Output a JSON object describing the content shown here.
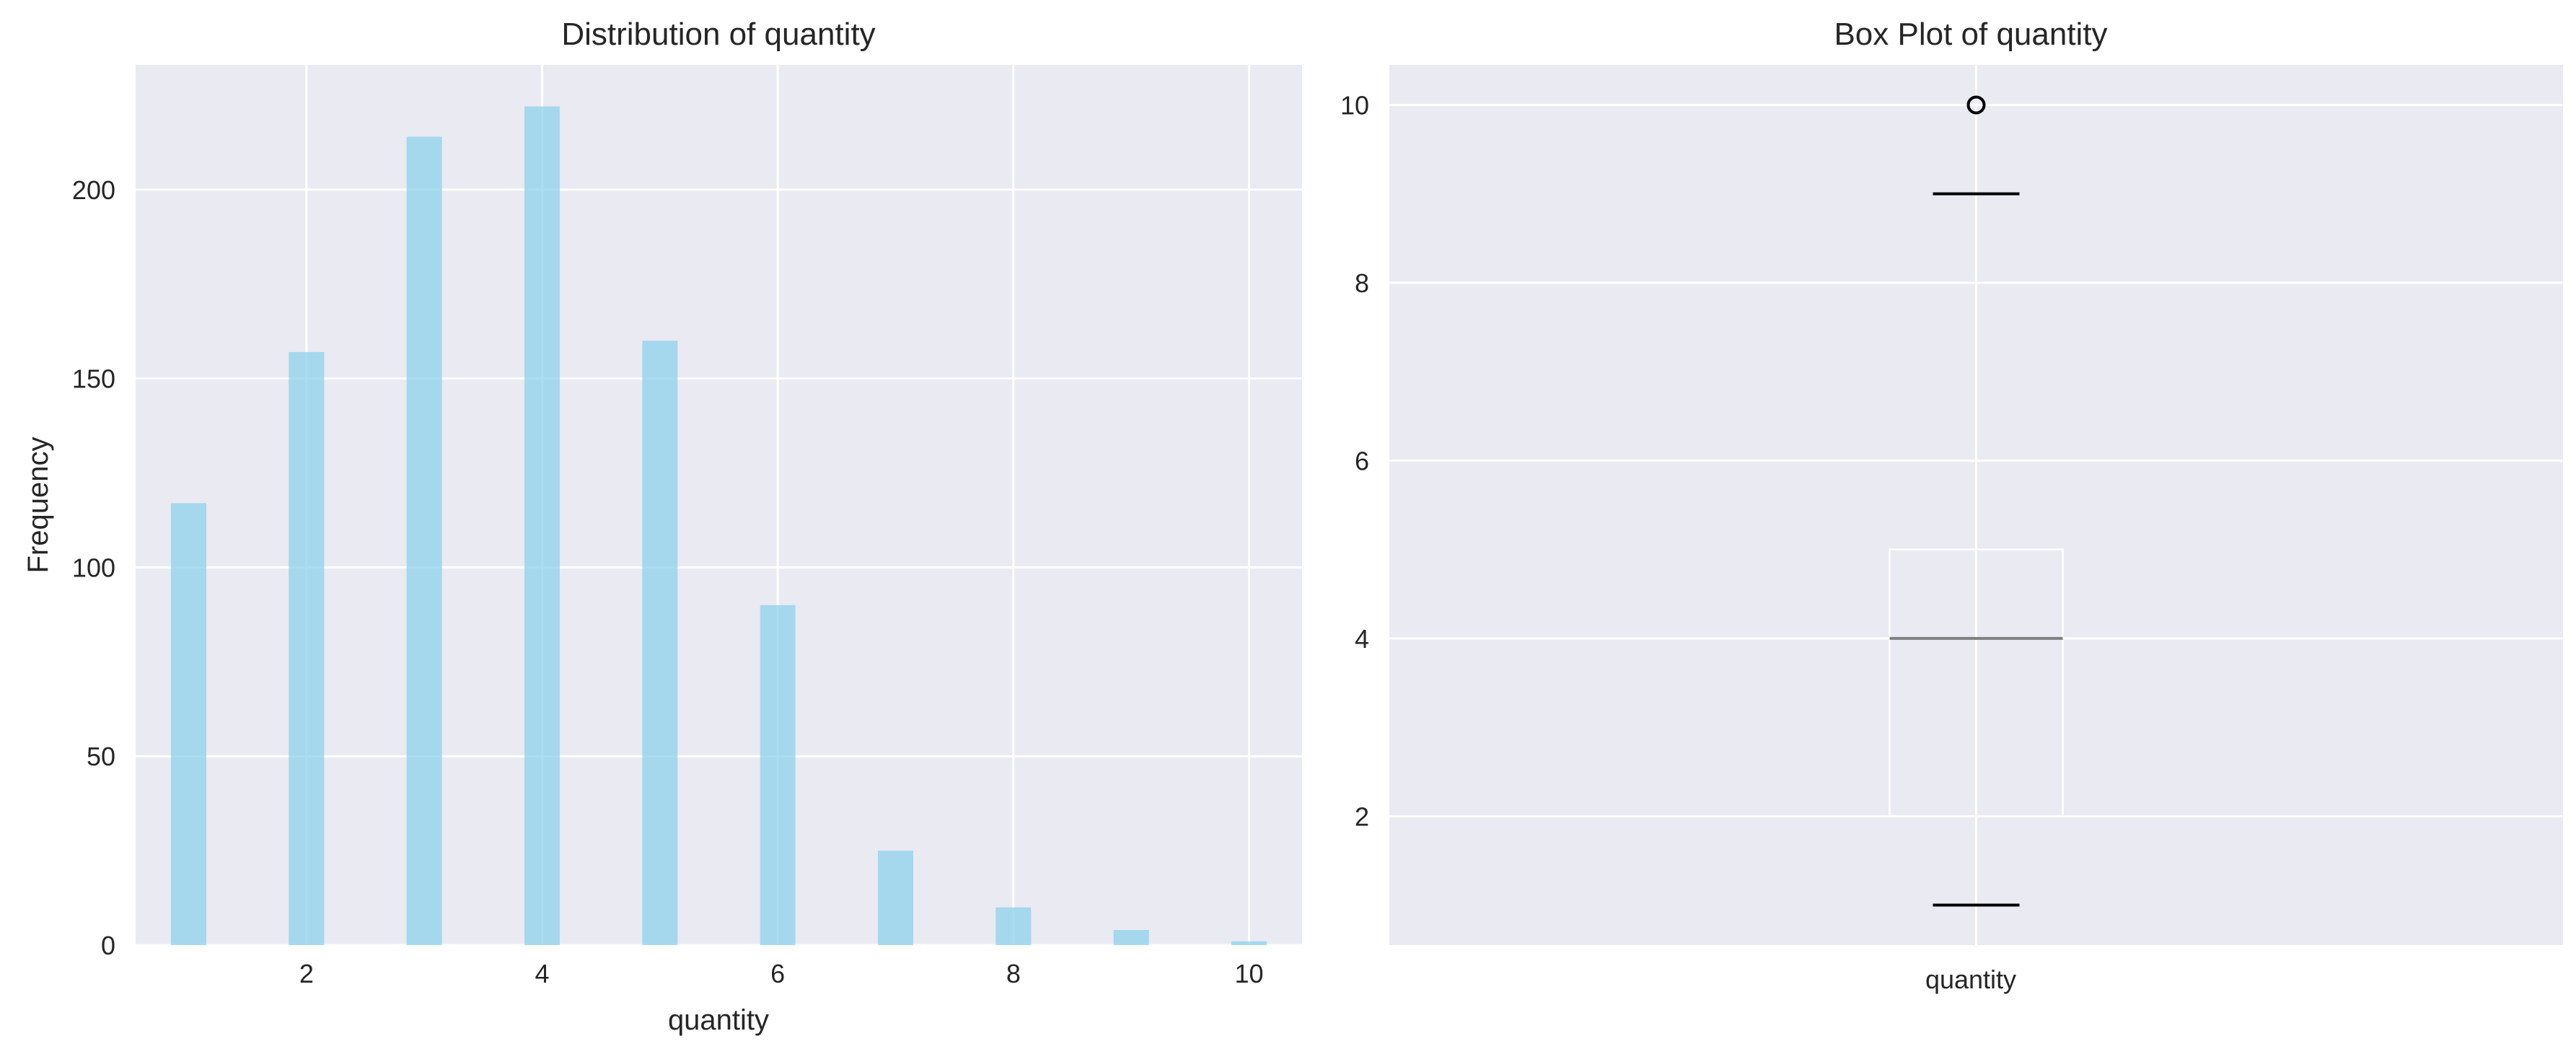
{
  "chart_data": [
    {
      "type": "bar",
      "title": "Distribution of quantity",
      "xlabel": "quantity",
      "ylabel": "Frequency",
      "x": [
        1,
        2,
        3,
        4,
        5,
        6,
        7,
        8,
        9,
        10
      ],
      "values": [
        117,
        157,
        214,
        222,
        160,
        90,
        25,
        10,
        4,
        1
      ],
      "xlim": [
        0.55,
        10.45
      ],
      "ylim": [
        0,
        233
      ],
      "xticks": [
        2,
        4,
        6,
        8,
        10
      ],
      "yticks": [
        0,
        50,
        100,
        150,
        200
      ],
      "grid": true,
      "colors": {
        "bar": "#87ceeb",
        "background": "#eaeaf2",
        "grid": "#ffffff"
      }
    },
    {
      "type": "box",
      "title": "Box Plot of quantity",
      "category": "quantity",
      "box": {
        "min": 1,
        "q1": 2,
        "median": 4,
        "q3": 5,
        "max": 9,
        "outliers": [
          10
        ]
      },
      "ylim": [
        0.55,
        10.45
      ],
      "yticks": [
        2,
        4,
        6,
        8,
        10
      ],
      "grid": true,
      "colors": {
        "box": "#ffffff",
        "median": "#808080",
        "whisker_cap": "#000000",
        "background": "#eaeaf2"
      }
    }
  ]
}
